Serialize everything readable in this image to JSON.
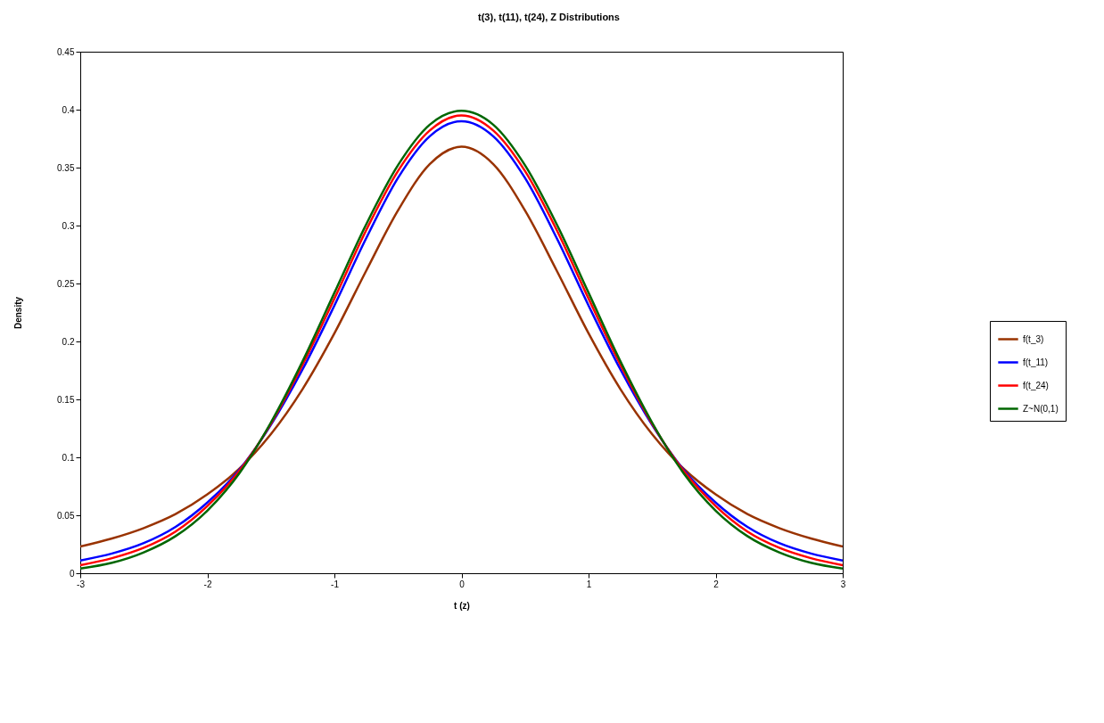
{
  "chart_data": {
    "type": "line",
    "title": "t(3), t(11), t(24), Z Distributions",
    "xlabel": "t (z)",
    "ylabel": "Density",
    "x": [
      -3,
      -2.75,
      -2.5,
      -2.25,
      -2,
      -1.75,
      -1.5,
      -1.25,
      -1,
      -0.75,
      -0.5,
      -0.25,
      0,
      0.25,
      0.5,
      0.75,
      1,
      1.25,
      1.5,
      1.75,
      2,
      2.25,
      2.5,
      2.75,
      3
    ],
    "series": [
      {
        "name": "f(t_3)",
        "color": "#993300",
        "values": [
          0.023,
          0.03,
          0.039,
          0.051,
          0.068,
          0.09,
          0.12,
          0.159,
          0.207,
          0.261,
          0.313,
          0.353,
          0.368,
          0.353,
          0.313,
          0.261,
          0.207,
          0.159,
          0.12,
          0.09,
          0.068,
          0.051,
          0.039,
          0.03,
          0.023
        ]
      },
      {
        "name": "f(t_11)",
        "color": "#0000ff",
        "values": [
          0.011,
          0.017,
          0.026,
          0.04,
          0.061,
          0.089,
          0.128,
          0.176,
          0.231,
          0.289,
          0.341,
          0.377,
          0.39,
          0.377,
          0.341,
          0.289,
          0.231,
          0.176,
          0.128,
          0.089,
          0.061,
          0.04,
          0.026,
          0.017,
          0.011
        ]
      },
      {
        "name": "f(t_24)",
        "color": "#ff0000",
        "values": [
          0.007,
          0.013,
          0.022,
          0.036,
          0.058,
          0.088,
          0.129,
          0.18,
          0.237,
          0.296,
          0.347,
          0.382,
          0.395,
          0.382,
          0.347,
          0.296,
          0.237,
          0.18,
          0.129,
          0.088,
          0.058,
          0.036,
          0.022,
          0.013,
          0.007
        ]
      },
      {
        "name": "Z~N(0,1)",
        "color": "#006600",
        "values": [
          0.004,
          0.009,
          0.018,
          0.032,
          0.054,
          0.086,
          0.13,
          0.183,
          0.242,
          0.301,
          0.352,
          0.387,
          0.399,
          0.387,
          0.352,
          0.301,
          0.242,
          0.183,
          0.13,
          0.086,
          0.054,
          0.032,
          0.018,
          0.009,
          0.004
        ]
      }
    ],
    "xlim": [
      -3,
      3
    ],
    "xticks": [
      -3,
      -2,
      -1,
      0,
      1,
      2,
      3
    ],
    "ylim": [
      0,
      0.45
    ],
    "yticks": [
      0,
      0.05,
      0.1,
      0.15,
      0.2,
      0.25,
      0.3,
      0.35,
      0.4,
      0.45
    ],
    "grid": false,
    "legend": "right",
    "marker": "none",
    "line_style": "solid"
  }
}
